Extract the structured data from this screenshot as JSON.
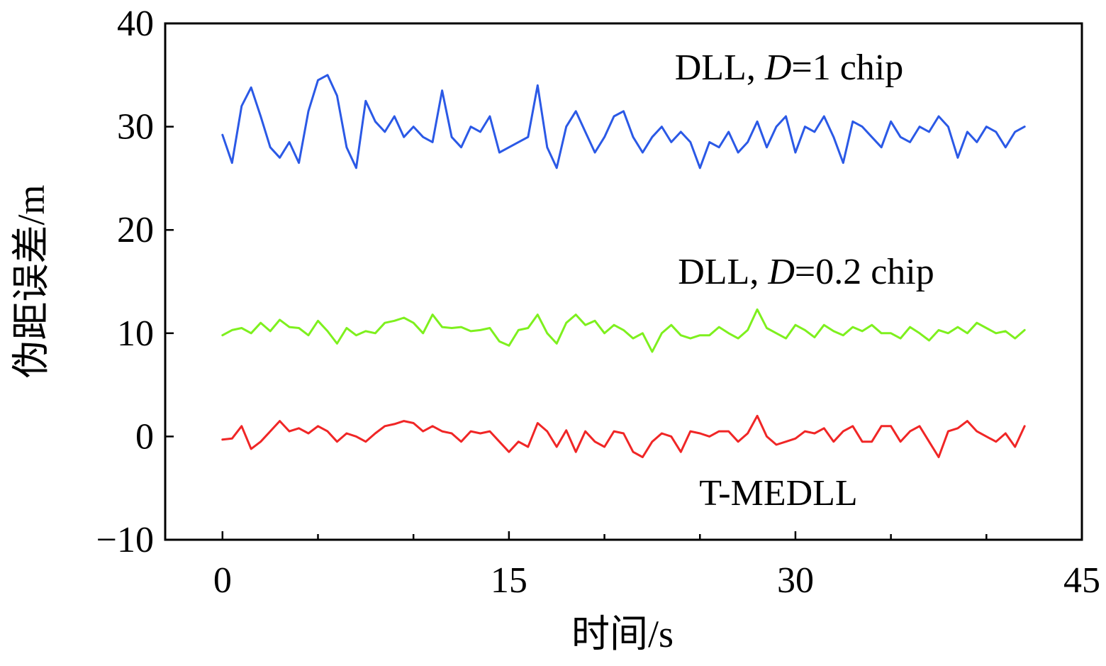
{
  "chart_data": {
    "type": "line",
    "title": "",
    "xlabel": "时间/s",
    "ylabel": "伪距误差/m",
    "xlim": [
      -3,
      45
    ],
    "ylim": [
      -10,
      40
    ],
    "xticks": [
      0,
      15,
      30,
      45
    ],
    "xtick_labels": [
      "0",
      "15",
      "30",
      "45"
    ],
    "yticks": [
      -10,
      0,
      10,
      20,
      30,
      40
    ],
    "ytick_labels": [
      "−10",
      "0",
      "10",
      "20",
      "30",
      "40"
    ],
    "grid": false,
    "x": [
      0,
      0.5,
      1,
      1.5,
      2,
      2.5,
      3,
      3.5,
      4,
      4.5,
      5,
      5.5,
      6,
      6.5,
      7,
      7.5,
      8,
      8.5,
      9,
      9.5,
      10,
      10.5,
      11,
      11.5,
      12,
      12.5,
      13,
      13.5,
      14,
      14.5,
      15,
      15.5,
      16,
      16.5,
      17,
      17.5,
      18,
      18.5,
      19,
      19.5,
      20,
      20.5,
      21,
      21.5,
      22,
      22.5,
      23,
      23.5,
      24,
      24.5,
      25,
      25.5,
      26,
      26.5,
      27,
      27.5,
      28,
      28.5,
      29,
      29.5,
      30,
      30.5,
      31,
      31.5,
      32,
      32.5,
      33,
      33.5,
      34,
      34.5,
      35,
      35.5,
      36,
      36.5,
      37,
      37.5,
      38,
      38.5,
      39,
      39.5,
      40,
      40.5,
      41,
      41.5,
      42
    ],
    "series": [
      {
        "name": "DLL, D=1 chip",
        "label_prefix": "DLL, ",
        "label_var": "D",
        "label_suffix": "=1 chip",
        "color": "#2b59e6",
        "values": [
          29.2,
          26.5,
          32.0,
          33.8,
          31.0,
          28.0,
          27.0,
          28.5,
          26.5,
          31.5,
          34.5,
          35.0,
          33.0,
          28.0,
          26.0,
          32.5,
          30.5,
          29.5,
          31.0,
          29.0,
          30.0,
          29.0,
          28.5,
          33.5,
          29.0,
          28.0,
          30.0,
          29.5,
          31.0,
          27.5,
          28.0,
          28.5,
          29.0,
          34.0,
          28.0,
          26.0,
          30.0,
          31.5,
          29.5,
          27.5,
          29.0,
          31.0,
          31.5,
          29.0,
          27.5,
          29.0,
          30.0,
          28.5,
          29.5,
          28.5,
          26.0,
          28.5,
          28.0,
          29.5,
          27.5,
          28.5,
          30.5,
          28.0,
          30.0,
          31.0,
          27.5,
          30.0,
          29.5,
          31.0,
          29.0,
          26.5,
          30.5,
          30.0,
          29.0,
          28.0,
          30.5,
          29.0,
          28.5,
          30.0,
          29.5,
          31.0,
          30.0,
          27.0,
          29.5,
          28.5,
          30.0,
          29.5,
          28.0,
          29.5,
          30.0
        ]
      },
      {
        "name": "DLL, D=0.2 chip",
        "label_prefix": "DLL, ",
        "label_var": "D",
        "label_suffix": "=0.2 chip",
        "color": "#7ef01e",
        "values": [
          9.8,
          10.3,
          10.5,
          10.0,
          11.0,
          10.2,
          11.3,
          10.6,
          10.5,
          9.8,
          11.2,
          10.2,
          9.0,
          10.5,
          9.8,
          10.2,
          10.0,
          11.0,
          11.2,
          11.5,
          11.0,
          10.0,
          11.8,
          10.6,
          10.5,
          10.6,
          10.2,
          10.3,
          10.5,
          9.2,
          8.8,
          10.3,
          10.5,
          11.8,
          10.0,
          9.0,
          11.0,
          11.8,
          10.8,
          11.2,
          10.0,
          10.8,
          10.3,
          9.5,
          10.0,
          8.2,
          10.0,
          10.8,
          9.8,
          9.5,
          9.8,
          9.8,
          10.6,
          10.0,
          9.5,
          10.3,
          12.3,
          10.5,
          10.0,
          9.5,
          10.8,
          10.3,
          9.6,
          10.8,
          10.2,
          9.8,
          10.6,
          10.2,
          10.8,
          10.0,
          10.0,
          9.5,
          10.6,
          10.0,
          9.3,
          10.3,
          10.0,
          10.6,
          10.0,
          11.0,
          10.5,
          10.0,
          10.2,
          9.5,
          10.3
        ]
      },
      {
        "name": "T-MEDLL",
        "label_prefix": "T-MEDLL",
        "label_var": "",
        "label_suffix": "",
        "color": "#f02626",
        "values": [
          -0.3,
          -0.2,
          1.0,
          -1.2,
          -0.5,
          0.5,
          1.5,
          0.5,
          0.8,
          0.3,
          1.0,
          0.5,
          -0.5,
          0.3,
          0.0,
          -0.5,
          0.3,
          1.0,
          1.2,
          1.5,
          1.3,
          0.5,
          1.0,
          0.5,
          0.3,
          -0.5,
          0.5,
          0.3,
          0.5,
          -0.5,
          -1.5,
          -0.5,
          -1.0,
          1.3,
          0.5,
          -1.0,
          0.6,
          -1.5,
          0.5,
          -0.5,
          -1.0,
          0.5,
          0.3,
          -1.5,
          -2.0,
          -0.5,
          0.3,
          0.0,
          -1.5,
          0.5,
          0.3,
          0.0,
          0.5,
          0.5,
          -0.5,
          0.3,
          2.0,
          0.0,
          -0.8,
          -0.5,
          -0.2,
          0.5,
          0.3,
          0.8,
          -0.5,
          0.5,
          1.0,
          -0.5,
          -0.5,
          1.0,
          1.0,
          -0.5,
          0.5,
          1.0,
          -0.5,
          -2.0,
          0.5,
          0.8,
          1.5,
          0.5,
          0.0,
          -0.5,
          0.3,
          -1.0,
          1.0
        ]
      }
    ]
  }
}
